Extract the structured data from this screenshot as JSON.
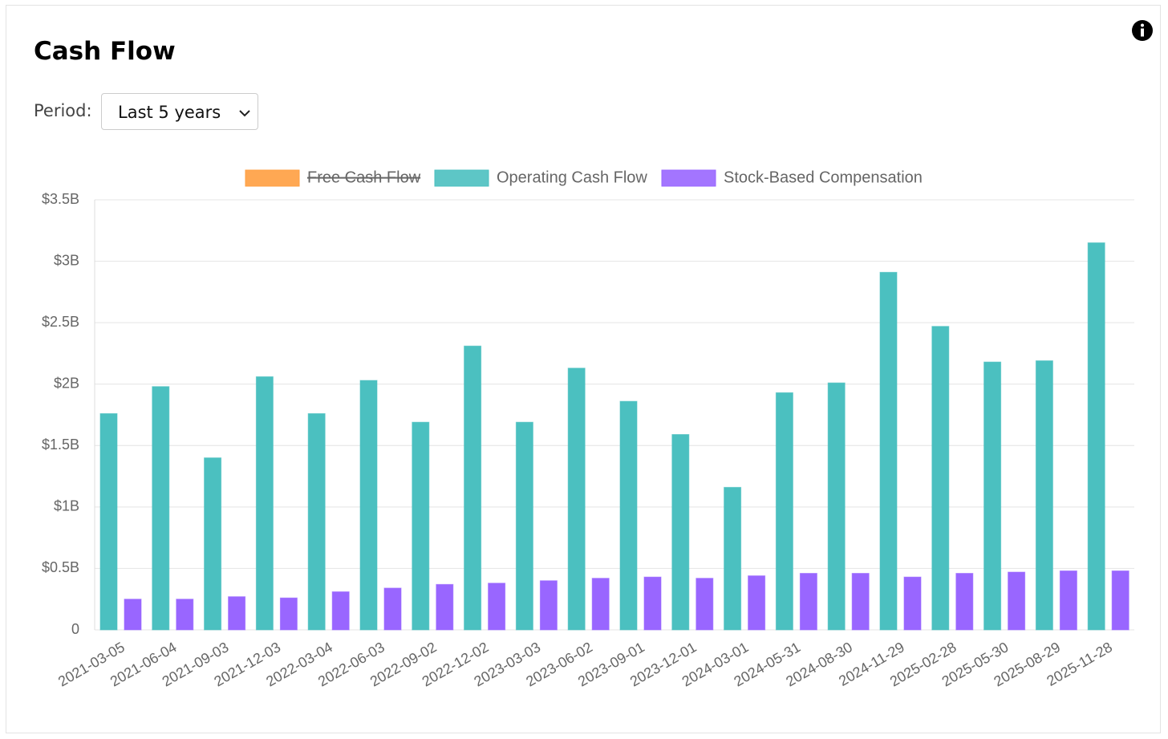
{
  "header": {
    "title": "Cash Flow",
    "period_label": "Period:",
    "period_value": "Last 5 years"
  },
  "chart_data": {
    "type": "bar",
    "categories": [
      "2021-03-05",
      "2021-06-04",
      "2021-09-03",
      "2021-12-03",
      "2022-03-04",
      "2022-06-03",
      "2022-09-02",
      "2022-12-02",
      "2023-03-03",
      "2023-06-02",
      "2023-09-01",
      "2023-12-01",
      "2024-03-01",
      "2024-05-31",
      "2024-08-30",
      "2024-11-29",
      "2025-02-28",
      "2025-05-30",
      "2025-08-29",
      "2025-11-28"
    ],
    "series": [
      {
        "name": "Free Cash Flow",
        "color": "#ff9f40",
        "hidden": true,
        "values": [
          null,
          null,
          null,
          null,
          null,
          null,
          null,
          null,
          null,
          null,
          null,
          null,
          null,
          null,
          null,
          null,
          null,
          null,
          null,
          null
        ]
      },
      {
        "name": "Operating Cash Flow",
        "color": "#4bc0c0",
        "values": [
          1760000000,
          1980000000,
          1400000000,
          2060000000,
          1760000000,
          2030000000,
          1690000000,
          2310000000,
          1690000000,
          2130000000,
          1860000000,
          1590000000,
          1160000000,
          1930000000,
          2010000000,
          2910000000,
          2470000000,
          2180000000,
          2190000000,
          3150000000
        ]
      },
      {
        "name": "Stock-Based Compensation",
        "color": "#9966ff",
        "values": [
          250000000,
          250000000,
          270000000,
          260000000,
          310000000,
          340000000,
          370000000,
          380000000,
          400000000,
          420000000,
          430000000,
          420000000,
          440000000,
          460000000,
          460000000,
          430000000,
          460000000,
          470000000,
          480000000,
          480000000
        ]
      }
    ],
    "ylim": [
      0,
      3500000000
    ],
    "yticks": [
      0,
      {
        "value": 500000000,
        "label": "$0.5B"
      },
      {
        "value": 1000000000,
        "label": "$1B"
      },
      {
        "value": 1500000000,
        "label": "$1.5B"
      },
      {
        "value": 2000000000,
        "label": "$2B"
      },
      {
        "value": 2500000000,
        "label": "$2.5B"
      },
      {
        "value": 3000000000,
        "label": "$3B"
      },
      {
        "value": 3500000000,
        "label": "$3.5B"
      }
    ],
    "grid": true,
    "legend": "top"
  }
}
